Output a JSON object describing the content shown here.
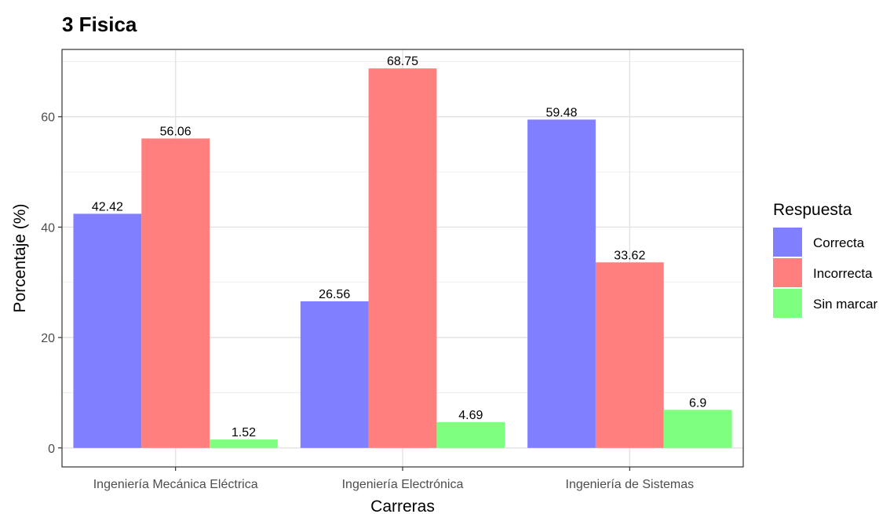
{
  "chart_data": {
    "type": "bar",
    "title": "3 Fisica",
    "xlabel": "Carreras",
    "ylabel": "Porcentaje (%)",
    "categories": [
      "Ingeniería Mecánica Eléctrica",
      "Ingeniería Electrónica",
      "Ingeniería de Sistemas"
    ],
    "series": [
      {
        "name": "Correcta",
        "values": [
          42.42,
          26.56,
          59.48
        ],
        "color": "#7f7fff"
      },
      {
        "name": "Incorrecta",
        "values": [
          56.06,
          68.75,
          33.62
        ],
        "color": "#ff7f7f"
      },
      {
        "name": "Sin marcar",
        "values": [
          1.52,
          4.69,
          6.9
        ],
        "color": "#7fff7f"
      }
    ],
    "data_labels": [
      [
        "42.42",
        "26.56",
        "59.48"
      ],
      [
        "56.06",
        "68.75",
        "33.62"
      ],
      [
        "1.52",
        "4.69",
        "6.9"
      ]
    ],
    "yticks": [
      0,
      20,
      40,
      60
    ],
    "ytick_labels": [
      "0",
      "20",
      "40",
      "60"
    ],
    "ylim": [
      -3.44,
      72.19
    ],
    "grid": true,
    "legend_title": "Respuesta",
    "legend_position": "right"
  }
}
